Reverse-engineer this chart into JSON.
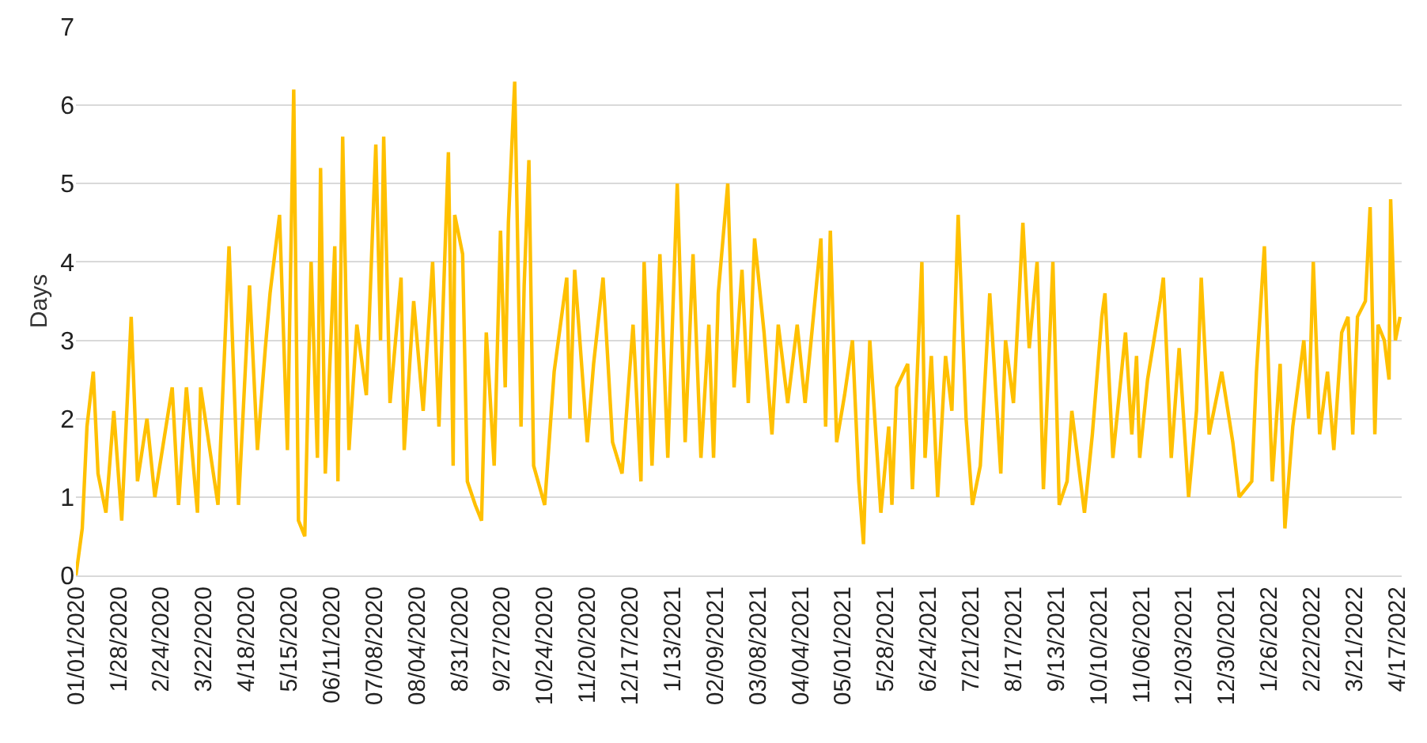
{
  "chart_data": {
    "type": "line",
    "ylabel": "Days",
    "x": [
      "2020-01-01",
      "2020-01-05",
      "2020-01-08",
      "2020-01-12",
      "2020-01-15",
      "2020-01-20",
      "2020-01-25",
      "2020-01-30",
      "2020-02-05",
      "2020-02-09",
      "2020-02-15",
      "2020-02-20",
      "2020-03-02",
      "2020-03-06",
      "2020-03-11",
      "2020-03-18",
      "2020-03-20",
      "2020-03-31",
      "2020-04-07",
      "2020-04-13",
      "2020-04-20",
      "2020-04-25",
      "2020-04-30",
      "2020-05-03",
      "2020-05-09",
      "2020-05-14",
      "2020-05-18",
      "2020-05-21",
      "2020-05-25",
      "2020-05-29",
      "2020-06-02",
      "2020-06-04",
      "2020-06-07",
      "2020-06-13",
      "2020-06-15",
      "2020-06-18",
      "2020-06-22",
      "2020-06-27",
      "2020-07-03",
      "2020-07-09",
      "2020-07-12",
      "2020-07-14",
      "2020-07-18",
      "2020-07-25",
      "2020-07-27",
      "2020-08-02",
      "2020-08-08",
      "2020-08-14",
      "2020-08-18",
      "2020-08-24",
      "2020-08-27",
      "2020-08-28",
      "2020-09-02",
      "2020-09-05",
      "2020-09-10",
      "2020-09-14",
      "2020-09-17",
      "2020-09-22",
      "2020-09-26",
      "2020-09-29",
      "2020-10-01",
      "2020-10-05",
      "2020-10-09",
      "2020-10-11",
      "2020-10-14",
      "2020-10-17",
      "2020-10-24",
      "2020-10-30",
      "2020-11-07",
      "2020-11-09",
      "2020-11-12",
      "2020-11-20",
      "2020-11-24",
      "2020-11-30",
      "2020-12-06",
      "2020-12-12",
      "2020-12-19",
      "2020-12-24",
      "2020-12-26",
      "2020-12-31",
      "2021-01-05",
      "2021-01-10",
      "2021-01-16",
      "2021-01-21",
      "2021-01-26",
      "2021-01-31",
      "2021-02-05",
      "2021-02-08",
      "2021-02-11",
      "2021-02-17",
      "2021-02-21",
      "2021-02-26",
      "2021-03-02",
      "2021-03-06",
      "2021-03-12",
      "2021-03-17",
      "2021-03-21",
      "2021-03-27",
      "2021-04-02",
      "2021-04-07",
      "2021-04-17",
      "2021-04-20",
      "2021-04-23",
      "2021-04-27",
      "2021-05-02",
      "2021-05-07",
      "2021-05-11",
      "2021-05-14",
      "2021-05-18",
      "2021-05-25",
      "2021-05-30",
      "2021-06-01",
      "2021-06-04",
      "2021-06-11",
      "2021-06-14",
      "2021-06-20",
      "2021-06-22",
      "2021-06-26",
      "2021-06-30",
      "2021-07-05",
      "2021-07-09",
      "2021-07-13",
      "2021-07-18",
      "2021-07-22",
      "2021-07-27",
      "2021-08-02",
      "2021-08-09",
      "2021-08-12",
      "2021-08-17",
      "2021-08-21",
      "2021-08-23",
      "2021-08-27",
      "2021-09-01",
      "2021-09-05",
      "2021-09-11",
      "2021-09-15",
      "2021-09-20",
      "2021-09-23",
      "2021-10-01",
      "2021-10-06",
      "2021-10-12",
      "2021-10-14",
      "2021-10-19",
      "2021-10-27",
      "2021-10-31",
      "2021-11-03",
      "2021-11-05",
      "2021-11-10",
      "2021-11-18",
      "2021-11-20",
      "2021-11-25",
      "2021-11-30",
      "2021-12-06",
      "2021-12-11",
      "2021-12-14",
      "2021-12-19",
      "2021-12-27",
      "2022-01-03",
      "2022-01-07",
      "2022-01-15",
      "2022-01-18",
      "2022-01-23",
      "2022-01-28",
      "2022-02-02",
      "2022-02-05",
      "2022-02-10",
      "2022-02-17",
      "2022-02-20",
      "2022-02-23",
      "2022-02-27",
      "2022-03-04",
      "2022-03-08",
      "2022-03-13",
      "2022-03-17",
      "2022-03-20",
      "2022-03-23",
      "2022-03-28",
      "2022-03-31",
      "2022-04-03",
      "2022-04-05",
      "2022-04-09",
      "2022-04-12",
      "2022-04-13",
      "2022-04-16",
      "2022-04-19"
    ],
    "series": [
      {
        "color": "#ffc000",
        "values": [
          0.0,
          0.6,
          1.9,
          2.6,
          1.3,
          0.8,
          2.1,
          0.7,
          3.3,
          1.2,
          2.0,
          1.0,
          2.4,
          0.9,
          2.4,
          0.8,
          2.4,
          0.9,
          4.2,
          0.9,
          3.7,
          1.6,
          2.9,
          3.6,
          4.6,
          1.6,
          6.2,
          0.7,
          0.5,
          4.0,
          1.5,
          5.2,
          1.3,
          4.2,
          1.2,
          5.6,
          1.6,
          3.2,
          2.3,
          5.5,
          3.0,
          5.6,
          2.2,
          3.8,
          1.6,
          3.5,
          2.1,
          4.0,
          1.9,
          5.4,
          1.4,
          4.6,
          4.1,
          1.2,
          0.9,
          0.7,
          3.1,
          1.4,
          4.4,
          2.4,
          4.5,
          6.3,
          1.9,
          3.7,
          5.3,
          1.4,
          0.9,
          2.6,
          3.8,
          2.0,
          3.9,
          1.7,
          2.7,
          3.8,
          1.7,
          1.3,
          3.2,
          1.2,
          4.0,
          1.4,
          4.1,
          1.5,
          5.0,
          1.7,
          4.1,
          1.5,
          3.2,
          1.5,
          3.6,
          5.0,
          2.4,
          3.9,
          2.2,
          4.3,
          3.1,
          1.8,
          3.2,
          2.2,
          3.2,
          2.2,
          4.3,
          1.9,
          4.4,
          1.7,
          2.3,
          3.0,
          1.2,
          0.4,
          3.0,
          0.8,
          1.9,
          0.9,
          2.4,
          2.7,
          1.1,
          4.0,
          1.5,
          2.8,
          1.0,
          2.8,
          2.1,
          4.6,
          2.0,
          0.9,
          1.4,
          3.6,
          1.3,
          3.0,
          2.2,
          3.7,
          4.5,
          2.9,
          4.0,
          1.1,
          4.0,
          0.9,
          1.2,
          2.1,
          0.8,
          1.8,
          3.3,
          3.6,
          1.5,
          3.1,
          1.8,
          2.8,
          1.5,
          2.5,
          3.5,
          3.8,
          1.5,
          2.9,
          1.0,
          2.1,
          3.8,
          1.8,
          2.6,
          1.7,
          1.0,
          1.2,
          2.6,
          4.2,
          1.2,
          2.7,
          0.6,
          1.9,
          3.0,
          2.0,
          4.0,
          1.8,
          2.6,
          1.6,
          3.1,
          3.3,
          1.8,
          3.3,
          3.5,
          4.7,
          1.8,
          3.2,
          3.0,
          2.5,
          4.8,
          3.0,
          3.3
        ]
      }
    ],
    "xlim": [
      "2020-01-01",
      "2022-04-20"
    ],
    "xticks": [
      {
        "value": "2020-01-01",
        "label": "01/01/2020"
      },
      {
        "value": "2020-01-28",
        "label": "1/28/2020"
      },
      {
        "value": "2020-02-24",
        "label": "2/24/2020"
      },
      {
        "value": "2020-03-22",
        "label": "3/22/2020"
      },
      {
        "value": "2020-04-18",
        "label": "4/18/2020"
      },
      {
        "value": "2020-05-15",
        "label": "5/15/2020"
      },
      {
        "value": "2020-06-11",
        "label": "06/11/2020"
      },
      {
        "value": "2020-07-08",
        "label": "07/08/2020"
      },
      {
        "value": "2020-08-04",
        "label": "08/04/2020"
      },
      {
        "value": "2020-08-31",
        "label": "8/31/2020"
      },
      {
        "value": "2020-09-27",
        "label": "9/27/2020"
      },
      {
        "value": "2020-10-24",
        "label": "10/24/2020"
      },
      {
        "value": "2020-11-20",
        "label": "11/20/2020"
      },
      {
        "value": "2020-12-17",
        "label": "12/17/2020"
      },
      {
        "value": "2021-01-13",
        "label": "1/13/2021"
      },
      {
        "value": "2021-02-09",
        "label": "02/09/2021"
      },
      {
        "value": "2021-03-08",
        "label": "03/08/2021"
      },
      {
        "value": "2021-04-04",
        "label": "04/04/2021"
      },
      {
        "value": "2021-05-01",
        "label": "05/01/2021"
      },
      {
        "value": "2021-05-28",
        "label": "5/28/2021"
      },
      {
        "value": "2021-06-24",
        "label": "6/24/2021"
      },
      {
        "value": "2021-07-21",
        "label": "7/21/2021"
      },
      {
        "value": "2021-08-17",
        "label": "8/17/2021"
      },
      {
        "value": "2021-09-13",
        "label": "9/13/2021"
      },
      {
        "value": "2021-10-10",
        "label": "10/10/2021"
      },
      {
        "value": "2021-11-06",
        "label": "11/06/2021"
      },
      {
        "value": "2021-12-03",
        "label": "12/03/2021"
      },
      {
        "value": "2021-12-30",
        "label": "12/30/2021"
      },
      {
        "value": "2022-01-26",
        "label": "1/26/2022"
      },
      {
        "value": "2022-02-22",
        "label": "2/22/2022"
      },
      {
        "value": "2022-03-21",
        "label": "3/21/2022"
      },
      {
        "value": "2022-04-17",
        "label": "4/17/2022"
      }
    ],
    "ylim": [
      0,
      7
    ],
    "yticks": [
      0,
      1,
      2,
      3,
      4,
      5,
      6,
      7
    ],
    "grid": "y",
    "marker": "none",
    "line_style": "solid"
  }
}
